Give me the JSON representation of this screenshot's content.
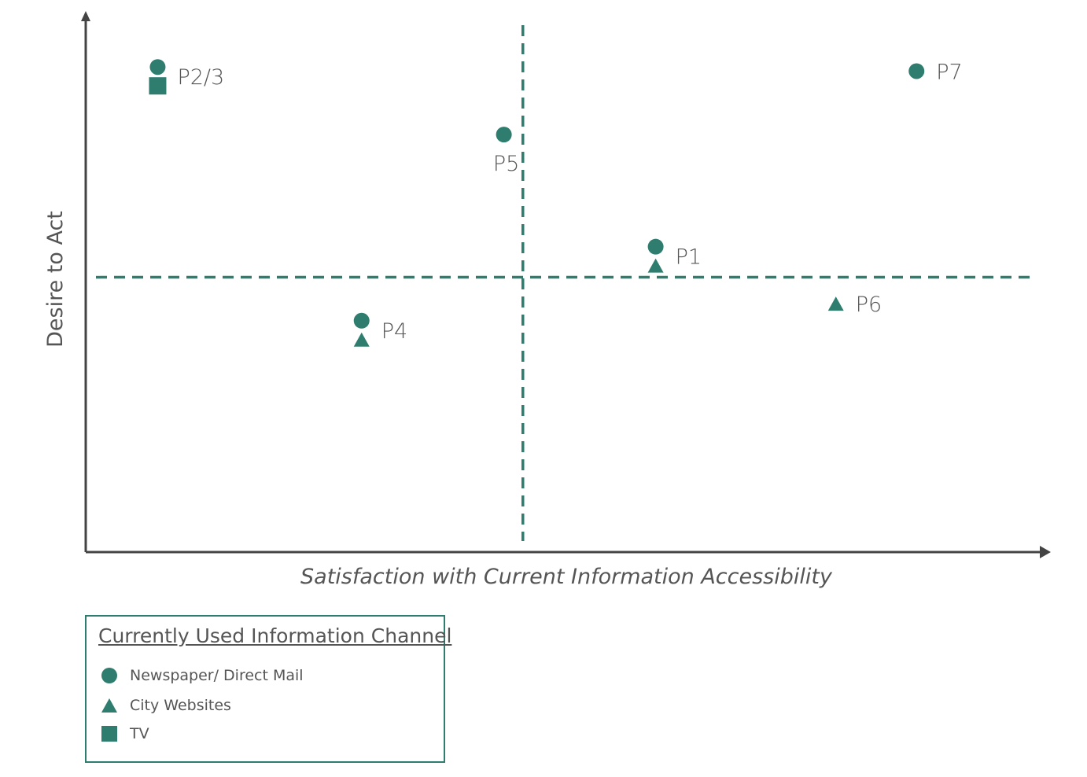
{
  "colors": {
    "marker": "#2e7d6f",
    "guide": "#2e7d6f",
    "axis": "#444444",
    "text": "#555555"
  },
  "chart_data": {
    "type": "scatter",
    "title": "",
    "xlabel": "Satisfaction with Current Information Accessibility",
    "ylabel": "Desire to Act",
    "xlim": [
      0,
      100
    ],
    "ylim": [
      0,
      100
    ],
    "grid": false,
    "divider_lines": {
      "x": 46,
      "y": 52
    },
    "points": [
      {
        "label": "P2/3",
        "x": 7.5,
        "y": 90,
        "markers": [
          "circle",
          "square"
        ]
      },
      {
        "label": "P5",
        "x": 44,
        "y": 79,
        "markers": [
          "circle"
        ]
      },
      {
        "label": "P7",
        "x": 87.5,
        "y": 91,
        "markers": [
          "circle"
        ]
      },
      {
        "label": "P1",
        "x": 60,
        "y": 56,
        "markers": [
          "circle",
          "triangle"
        ]
      },
      {
        "label": "P6",
        "x": 79,
        "y": 47,
        "markers": [
          "triangle"
        ]
      },
      {
        "label": "P4",
        "x": 29,
        "y": 42,
        "markers": [
          "circle",
          "triangle"
        ]
      }
    ],
    "legend": {
      "title": "Currently Used Information Channel",
      "position": "bottom-left",
      "items": [
        {
          "marker": "circle",
          "label": "Newspaper/ Direct Mail"
        },
        {
          "marker": "triangle",
          "label": "City Websites"
        },
        {
          "marker": "square",
          "label": "TV"
        }
      ]
    }
  }
}
